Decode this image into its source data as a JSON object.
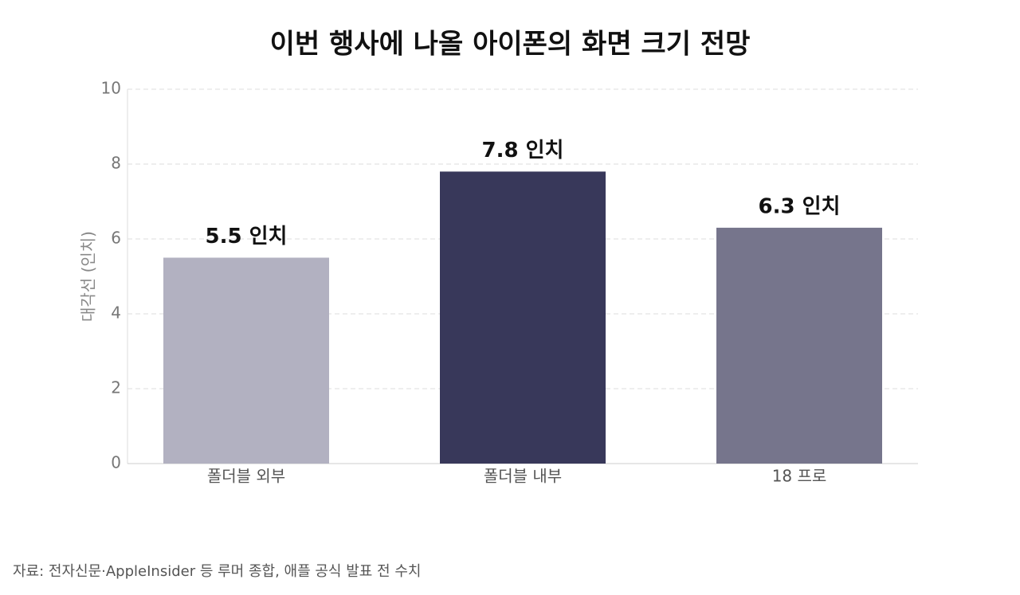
{
  "chart_data": {
    "type": "bar",
    "title": "이번 행사에 나올 아이폰의 화면 크기 전망",
    "y_label": "대각선 (인치)",
    "categories": [
      "폴더블 외부",
      "폴더블 내부",
      "18 프로"
    ],
    "values": [
      5.5,
      7.8,
      6.3
    ],
    "value_labels": [
      "5.5 인치",
      "7.8 인치",
      "6.3 인치"
    ],
    "colors": [
      "#b2b1c1",
      "#38385a",
      "#76758c"
    ],
    "ylim": [
      0,
      10
    ],
    "yticks": [
      0,
      2,
      4,
      6,
      8,
      10
    ],
    "grid": true,
    "source": "자료: 전자신문·AppleInsider 등 루머 종합, 애플 공식 발표 전 수치"
  }
}
